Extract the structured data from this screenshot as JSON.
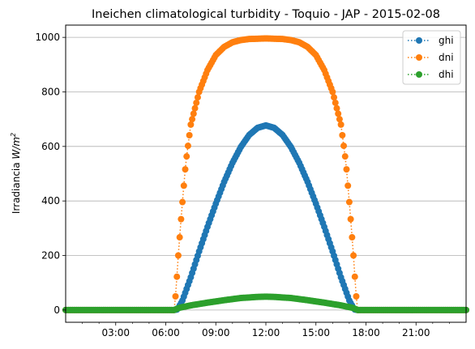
{
  "chart_data": {
    "type": "line",
    "title": "Ineichen climatological turbidity - Toquio - JAP - 2015-02-08",
    "ylabel_text": "Irradiancia ",
    "ylabel_unit": "W/m",
    "ylabel_unit_exp": "2",
    "xlim": [
      0,
      24
    ],
    "ylim": [
      -45,
      1045
    ],
    "x_ticks": [
      {
        "x": 3,
        "label": "03:00"
      },
      {
        "x": 6,
        "label": "06:00"
      },
      {
        "x": 9,
        "label": "09:00"
      },
      {
        "x": 12,
        "label": "12:00"
      },
      {
        "x": 15,
        "label": "15:00"
      },
      {
        "x": 18,
        "label": "18:00"
      },
      {
        "x": 21,
        "label": "21:00"
      }
    ],
    "y_ticks": [
      {
        "y": 0,
        "label": "0"
      },
      {
        "y": 200,
        "label": "200"
      },
      {
        "y": 400,
        "label": "400"
      },
      {
        "y": 600,
        "label": "600"
      },
      {
        "y": 800,
        "label": "800"
      },
      {
        "y": 1000,
        "label": "1000"
      }
    ],
    "grid": "horizontal",
    "legend_position": "top-right",
    "sampling_minutes": 5,
    "series": [
      {
        "name": "ghi",
        "color": "#1f77b4",
        "points": [
          [
            0,
            0
          ],
          [
            6.5,
            0
          ],
          [
            6.7,
            2
          ],
          [
            7,
            35
          ],
          [
            7.5,
            120
          ],
          [
            8,
            215
          ],
          [
            8.5,
            305
          ],
          [
            9,
            390
          ],
          [
            9.5,
            470
          ],
          [
            10,
            540
          ],
          [
            10.5,
            598
          ],
          [
            11,
            642
          ],
          [
            11.5,
            668
          ],
          [
            12,
            677
          ],
          [
            12.5,
            668
          ],
          [
            13,
            642
          ],
          [
            13.5,
            598
          ],
          [
            14,
            540
          ],
          [
            14.5,
            470
          ],
          [
            15,
            390
          ],
          [
            15.5,
            305
          ],
          [
            16,
            215
          ],
          [
            16.5,
            120
          ],
          [
            17,
            35
          ],
          [
            17.3,
            2
          ],
          [
            17.5,
            0
          ],
          [
            24,
            0
          ]
        ]
      },
      {
        "name": "dni",
        "color": "#ff7f0e",
        "points": [
          [
            0,
            0
          ],
          [
            6.5,
            0
          ],
          [
            6.6,
            60
          ],
          [
            6.75,
            200
          ],
          [
            6.95,
            360
          ],
          [
            7.2,
            540
          ],
          [
            7.5,
            680
          ],
          [
            8,
            800
          ],
          [
            8.5,
            880
          ],
          [
            9,
            935
          ],
          [
            9.5,
            965
          ],
          [
            10,
            982
          ],
          [
            10.5,
            990
          ],
          [
            11,
            994
          ],
          [
            12,
            996
          ],
          [
            13,
            994
          ],
          [
            13.5,
            990
          ],
          [
            14,
            982
          ],
          [
            14.5,
            965
          ],
          [
            15,
            935
          ],
          [
            15.5,
            880
          ],
          [
            16,
            800
          ],
          [
            16.5,
            680
          ],
          [
            16.8,
            540
          ],
          [
            17.05,
            360
          ],
          [
            17.25,
            200
          ],
          [
            17.4,
            60
          ],
          [
            17.5,
            0
          ],
          [
            24,
            0
          ]
        ]
      },
      {
        "name": "dhi",
        "color": "#2ca02c",
        "points": [
          [
            0,
            0
          ],
          [
            6.5,
            0
          ],
          [
            6.8,
            8
          ],
          [
            7.5,
            17
          ],
          [
            8.5,
            27
          ],
          [
            9.5,
            36
          ],
          [
            10.5,
            44
          ],
          [
            11.5,
            48
          ],
          [
            12,
            49
          ],
          [
            12.5,
            48
          ],
          [
            13.5,
            44
          ],
          [
            14.5,
            36
          ],
          [
            15.5,
            27
          ],
          [
            16.5,
            17
          ],
          [
            17.2,
            8
          ],
          [
            17.5,
            0
          ],
          [
            24,
            0
          ]
        ]
      }
    ]
  }
}
